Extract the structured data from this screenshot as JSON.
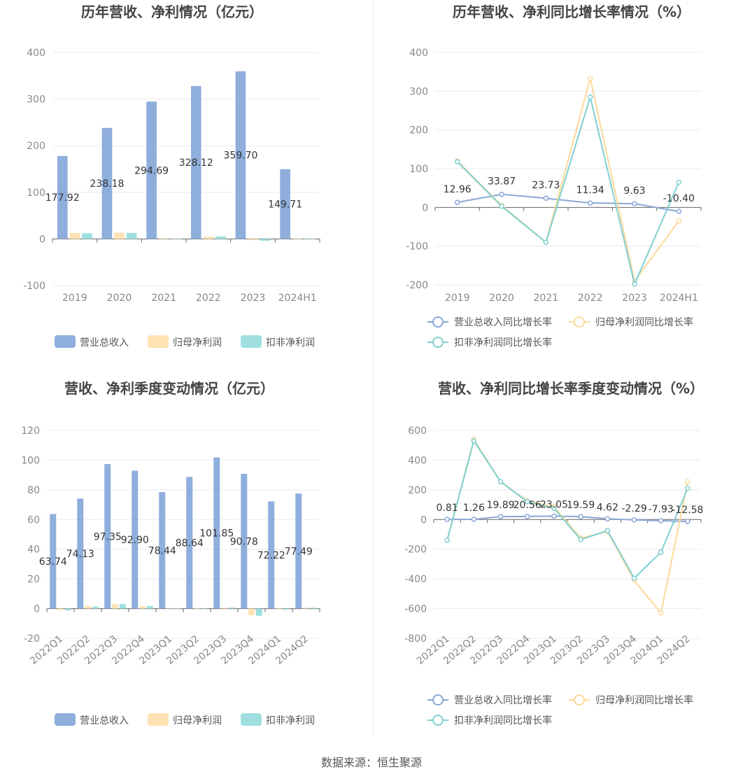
{
  "footer": "数据来源：恒生聚源",
  "colors": {
    "revenue": "#8eaedc",
    "parent_profit": "#ffe2b4",
    "deducted_profit": "#9fdfe0",
    "revenue_line": "#8aa7d6",
    "parent_line": "#fdd99a",
    "deducted_line": "#7fd0d1",
    "axis": "#888888",
    "grid": "#e8eaf2",
    "label": "#333333"
  },
  "chart_data": [
    {
      "id": "annual_amounts",
      "type": "bar",
      "title": "历年营收、净利情况（亿元）",
      "categories": [
        "2019",
        "2020",
        "2021",
        "2022",
        "2023",
        "2024H1"
      ],
      "ylim": [
        -100,
        400
      ],
      "yticks": [
        -100,
        0,
        100,
        200,
        300,
        400
      ],
      "grid": true,
      "legend_position": "bottom",
      "series": [
        {
          "name": "营业总收入",
          "values": [
            177.92,
            238.18,
            294.69,
            328.12,
            359.7,
            149.71
          ],
          "labels": [
            "177.92",
            "238.18",
            "294.69",
            "328.12",
            "359.70",
            "149.71"
          ]
        },
        {
          "name": "归母净利润",
          "values": [
            12.5,
            13.5,
            0.8,
            5.0,
            -2.5,
            0.8
          ]
        },
        {
          "name": "扣非净利润",
          "values": [
            12.0,
            13.0,
            0.5,
            5.5,
            -4.0,
            0.5
          ]
        }
      ]
    },
    {
      "id": "annual_growth",
      "type": "line",
      "title": "历年营收、净利同比增长率情况（%）",
      "categories": [
        "2019",
        "2020",
        "2021",
        "2022",
        "2023",
        "2024H1"
      ],
      "ylim": [
        -200,
        400
      ],
      "yticks": [
        -200,
        -100,
        0,
        100,
        200,
        300,
        400
      ],
      "grid": true,
      "legend_position": "bottom",
      "series": [
        {
          "name": "营业总收入同比增长率",
          "values": [
            12.96,
            33.87,
            23.73,
            11.34,
            9.63,
            -10.4
          ],
          "labels": [
            "12.96",
            "33.87",
            "23.73",
            "11.34",
            "9.63",
            "-10.40"
          ]
        },
        {
          "name": "归母净利润同比增长率",
          "values": [
            120,
            5,
            -90,
            333,
            -190,
            -35
          ]
        },
        {
          "name": "扣非净利润同比增长率",
          "values": [
            118,
            3,
            -90,
            285,
            -198,
            65
          ]
        }
      ]
    },
    {
      "id": "quarterly_amounts",
      "type": "bar",
      "title": "营收、净利季度变动情况（亿元）",
      "categories": [
        "2022Q1",
        "2022Q2",
        "2022Q3",
        "2022Q4",
        "2023Q1",
        "2023Q2",
        "2023Q3",
        "2023Q4",
        "2024Q1",
        "2024Q2"
      ],
      "ylim": [
        -20,
        120
      ],
      "yticks": [
        -20,
        0,
        20,
        40,
        60,
        80,
        100,
        120
      ],
      "grid": true,
      "legend_position": "bottom",
      "series": [
        {
          "name": "营业总收入",
          "values": [
            63.74,
            74.13,
            97.35,
            92.9,
            78.44,
            88.64,
            101.85,
            90.78,
            72.22,
            77.49
          ],
          "labels": [
            "63.74",
            "74.13",
            "97.35",
            "92.90",
            "78.44",
            "88.64",
            "101.85",
            "90.78",
            "72.22",
            "77.49"
          ]
        },
        {
          "name": "归母净利润",
          "values": [
            -1.0,
            1.8,
            3.0,
            1.5,
            0.2,
            0.3,
            0.6,
            -4.5,
            0.5,
            0.6
          ]
        },
        {
          "name": "扣非净利润",
          "values": [
            -1.2,
            1.4,
            3.2,
            1.8,
            0.1,
            0.2,
            0.8,
            -4.8,
            -0.8,
            0.6
          ]
        }
      ]
    },
    {
      "id": "quarterly_growth",
      "type": "line",
      "title": "营收、净利同比增长率季度变动情况（%）",
      "categories": [
        "2022Q1",
        "2022Q2",
        "2022Q3",
        "2022Q4",
        "2023Q1",
        "2023Q2",
        "2023Q3",
        "2023Q4",
        "2024Q1",
        "2024Q2"
      ],
      "ylim": [
        -800,
        600
      ],
      "yticks": [
        -800,
        -600,
        -400,
        -200,
        0,
        200,
        400,
        600
      ],
      "grid": true,
      "legend_position": "bottom",
      "series": [
        {
          "name": "营业总收入同比增长率",
          "values": [
            0.81,
            1.26,
            19.89,
            20.56,
            23.05,
            19.59,
            4.62,
            -2.29,
            -7.93,
            -12.58
          ],
          "labels": [
            "0.81",
            "1.26",
            "19.89",
            "20.56",
            "23.05",
            "19.59",
            "4.62",
            "-2.29",
            "-7.93",
            "-12.58"
          ]
        },
        {
          "name": "归母净利润同比增长率",
          "values": [
            -140,
            540,
            255,
            125,
            85,
            -125,
            -80,
            -410,
            -630,
            255
          ]
        },
        {
          "name": "扣非净利润同比增长率",
          "values": [
            -140,
            530,
            255,
            120,
            75,
            -135,
            -75,
            -395,
            -220,
            210
          ]
        }
      ]
    }
  ]
}
